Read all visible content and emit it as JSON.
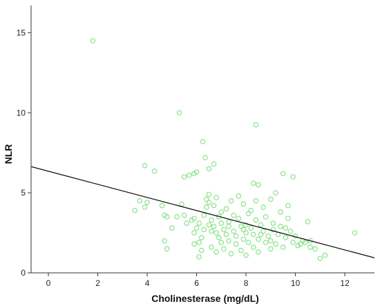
{
  "chart_data": {
    "type": "scatter",
    "title": "",
    "xlabel": "Cholinesterase (mg/dL)",
    "ylabel": "NLR",
    "xlim": [
      -0.7,
      13.2
    ],
    "ylim": [
      0,
      16.7
    ],
    "x_ticks": [
      "0",
      "2",
      "4",
      "6",
      "8",
      "10",
      "12"
    ],
    "y_ticks": [
      "0",
      "5",
      "10",
      "15"
    ],
    "grid": false,
    "legend": "none",
    "marker_color": "#7ee07e",
    "line_color": "#111111",
    "fit_line": {
      "intercept": 6.35,
      "slope": -0.41
    },
    "points": [
      [
        1.8,
        14.5
      ],
      [
        5.3,
        10.0
      ],
      [
        8.4,
        9.25
      ],
      [
        6.25,
        8.2
      ],
      [
        6.35,
        7.2
      ],
      [
        3.9,
        6.7
      ],
      [
        4.3,
        6.35
      ],
      [
        6.7,
        6.8
      ],
      [
        6.5,
        6.5
      ],
      [
        6.0,
        6.3
      ],
      [
        5.9,
        6.2
      ],
      [
        5.7,
        6.1
      ],
      [
        5.5,
        6.0
      ],
      [
        9.5,
        6.2
      ],
      [
        9.9,
        6.0
      ],
      [
        8.3,
        5.6
      ],
      [
        8.5,
        5.5
      ],
      [
        3.5,
        3.9
      ],
      [
        3.7,
        4.5
      ],
      [
        4.0,
        4.4
      ],
      [
        4.6,
        4.2
      ],
      [
        4.7,
        3.6
      ],
      [
        4.8,
        3.5
      ],
      [
        4.7,
        2.0
      ],
      [
        4.8,
        1.5
      ],
      [
        5.0,
        2.8
      ],
      [
        5.2,
        3.5
      ],
      [
        5.4,
        4.3
      ],
      [
        5.6,
        3.1
      ],
      [
        5.8,
        3.3
      ],
      [
        5.9,
        3.4
      ],
      [
        5.9,
        2.5
      ],
      [
        6.0,
        2.8
      ],
      [
        6.1,
        3.1
      ],
      [
        6.1,
        1.9
      ],
      [
        6.1,
        1.0
      ],
      [
        6.2,
        2.2
      ],
      [
        6.3,
        3.6
      ],
      [
        6.4,
        4.6
      ],
      [
        6.4,
        4.1
      ],
      [
        6.5,
        4.9
      ],
      [
        6.5,
        4.4
      ],
      [
        6.5,
        3.0
      ],
      [
        6.6,
        3.3
      ],
      [
        6.6,
        2.6
      ],
      [
        6.6,
        1.6
      ],
      [
        6.7,
        4.2
      ],
      [
        6.7,
        2.9
      ],
      [
        6.8,
        2.5
      ],
      [
        6.8,
        1.3
      ],
      [
        6.9,
        3.5
      ],
      [
        6.9,
        2.2
      ],
      [
        7.0,
        3.8
      ],
      [
        7.0,
        3.1
      ],
      [
        7.0,
        1.9
      ],
      [
        7.1,
        2.7
      ],
      [
        7.1,
        1.5
      ],
      [
        7.2,
        4.0
      ],
      [
        7.2,
        2.4
      ],
      [
        7.3,
        3.2
      ],
      [
        7.3,
        2.0
      ],
      [
        7.4,
        4.5
      ],
      [
        7.4,
        1.2
      ],
      [
        7.5,
        2.6
      ],
      [
        7.5,
        3.6
      ],
      [
        7.6,
        1.8
      ],
      [
        7.6,
        2.3
      ],
      [
        7.7,
        4.8
      ],
      [
        7.7,
        3.4
      ],
      [
        7.8,
        2.9
      ],
      [
        7.8,
        1.4
      ],
      [
        7.9,
        2.1
      ],
      [
        7.9,
        4.3
      ],
      [
        8.0,
        3.0
      ],
      [
        8.0,
        2.5
      ],
      [
        8.0,
        1.1
      ],
      [
        8.1,
        3.7
      ],
      [
        8.1,
        1.9
      ],
      [
        8.2,
        2.8
      ],
      [
        8.2,
        3.9
      ],
      [
        8.3,
        1.6
      ],
      [
        8.3,
        2.4
      ],
      [
        8.4,
        4.5
      ],
      [
        8.4,
        3.3
      ],
      [
        8.5,
        2.1
      ],
      [
        8.5,
        1.3
      ],
      [
        8.6,
        3.0
      ],
      [
        8.7,
        2.6
      ],
      [
        8.7,
        4.1
      ],
      [
        8.8,
        1.9
      ],
      [
        8.8,
        3.5
      ],
      [
        8.9,
        2.3
      ],
      [
        9.0,
        4.6
      ],
      [
        9.0,
        1.5
      ],
      [
        9.1,
        3.1
      ],
      [
        9.1,
        2.7
      ],
      [
        9.2,
        5.0
      ],
      [
        9.2,
        1.8
      ],
      [
        9.3,
        2.4
      ],
      [
        9.4,
        3.8
      ],
      [
        9.4,
        2.9
      ],
      [
        9.5,
        1.6
      ],
      [
        9.6,
        2.2
      ],
      [
        9.7,
        4.2
      ],
      [
        9.7,
        3.4
      ],
      [
        9.8,
        2.6
      ],
      [
        9.9,
        1.9
      ],
      [
        10.0,
        2.3
      ],
      [
        10.1,
        1.7
      ],
      [
        10.2,
        1.8
      ],
      [
        10.3,
        2.0
      ],
      [
        10.5,
        3.2
      ],
      [
        10.6,
        2.0
      ],
      [
        10.6,
        1.6
      ],
      [
        10.8,
        1.5
      ],
      [
        11.0,
        0.9
      ],
      [
        11.2,
        1.1
      ],
      [
        12.4,
        2.5
      ],
      [
        3.9,
        4.1
      ],
      [
        5.5,
        3.6
      ],
      [
        6.2,
        1.4
      ],
      [
        6.8,
        4.7
      ],
      [
        7.3,
        2.9
      ],
      [
        7.9,
        2.7
      ],
      [
        8.6,
        2.4
      ],
      [
        9.0,
        2.0
      ],
      [
        9.6,
        2.8
      ],
      [
        10.4,
        1.9
      ],
      [
        5.9,
        1.8
      ],
      [
        6.3,
        2.7
      ]
    ]
  }
}
